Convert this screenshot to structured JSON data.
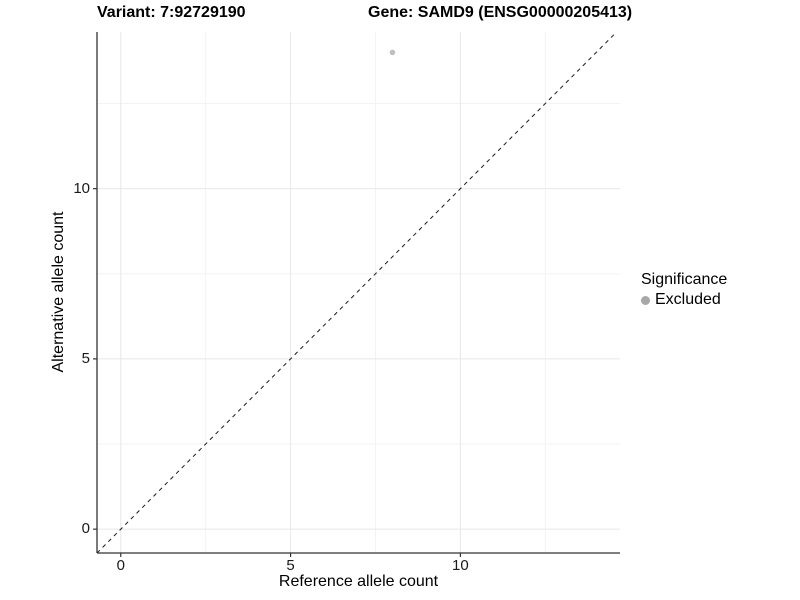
{
  "titles": {
    "variant": "Variant: 7:92729190",
    "gene": "Gene: SAMD9 (ENSG00000205413)"
  },
  "chart_data": {
    "type": "scatter",
    "xlabel": "Reference allele count",
    "ylabel": "Alternative allele count",
    "xlim": [
      -0.7,
      14.7
    ],
    "ylim": [
      -0.7,
      14.6
    ],
    "x_ticks": [
      0,
      5,
      10
    ],
    "y_ticks": [
      0,
      5,
      10
    ],
    "x_minor_ticks": [
      2.5,
      7.5,
      12.5
    ],
    "y_minor_ticks": [
      2.5,
      7.5,
      12.5
    ],
    "grid": "major and minor, light gray, on white background",
    "reference_line": {
      "type": "identity y=x",
      "style": "dashed",
      "color": "#1a1a1a"
    },
    "series": [
      {
        "name": "Excluded",
        "color": "#c0c0c0",
        "points": [
          {
            "x": 8,
            "y": 14
          }
        ]
      }
    ],
    "legend": {
      "title": "Significance",
      "position": "right",
      "items": [
        {
          "label": "Excluded",
          "color": "#a8a8a8"
        }
      ]
    },
    "colors": {
      "axis_line": "#333333",
      "major_grid": "#e8e8e8",
      "minor_grid": "#f3f3f3",
      "point": "#c0c0c0",
      "legend_dot": "#a8a8a8"
    }
  }
}
